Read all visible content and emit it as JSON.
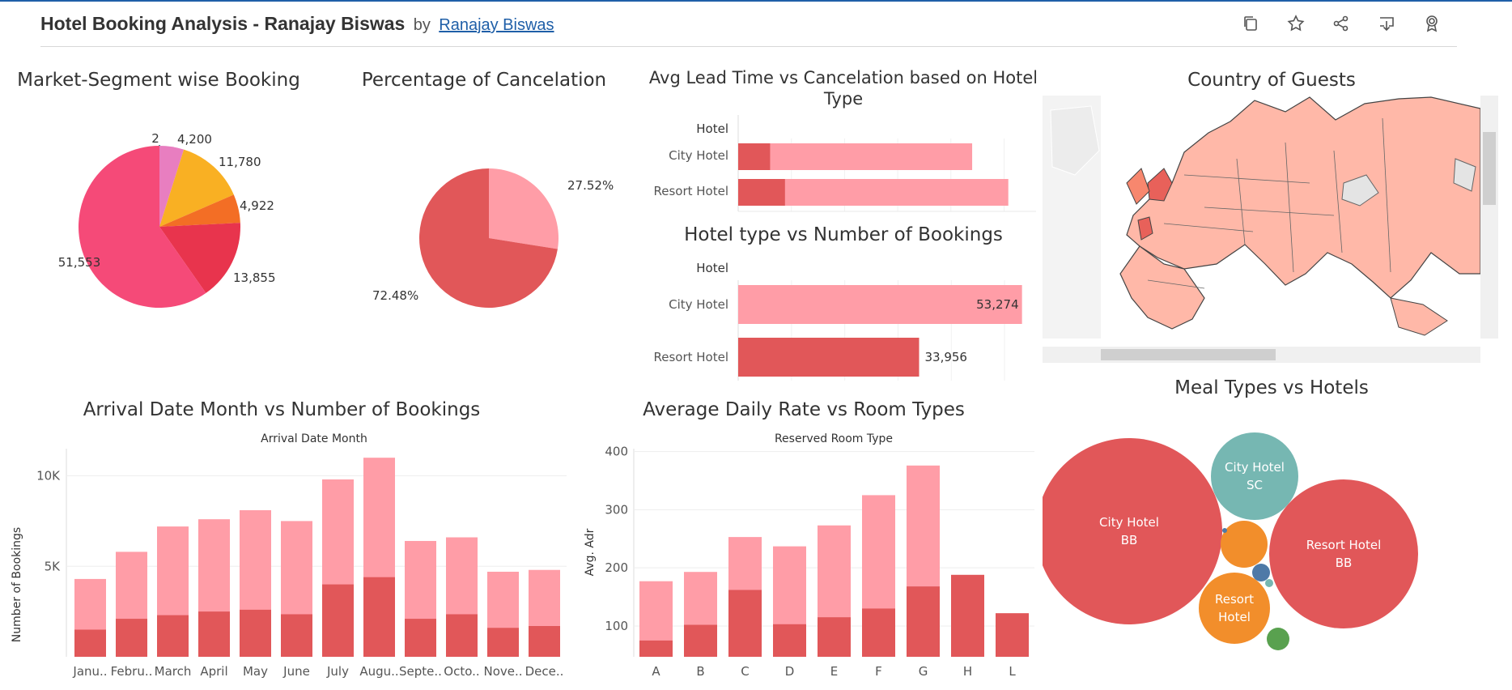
{
  "header": {
    "title": "Hotel Booking Analysis - Ranajay Biswas",
    "by": "by",
    "author": "Ranajay Biswas"
  },
  "toolbar": [
    "copy-icon",
    "star-icon",
    "share-icon",
    "download-icon",
    "badge-icon"
  ],
  "colors": {
    "dark_red": "#e15759",
    "light_red": "#ff9da7",
    "pink": "#f54a78",
    "teal": "#76b7b2",
    "orange": "#f28e2b",
    "blue": "#4e79a7",
    "green": "#59a14f",
    "map_land": "#ffb8a8",
    "map_dark": "#e8615a"
  },
  "chart_data": [
    {
      "id": "market",
      "type": "pie",
      "title": "Market-Segment wise Booking",
      "slices": [
        {
          "value": 2,
          "label": "2",
          "color": "#499894"
        },
        {
          "value": 4200,
          "label": "4,200",
          "color": "#e87ec0"
        },
        {
          "value": 11780,
          "label": "11,780",
          "color": "#f9b023"
        },
        {
          "value": 4922,
          "label": "4,922",
          "color": "#f36e25"
        },
        {
          "value": 13855,
          "label": "13,855",
          "color": "#e8344d"
        },
        {
          "value": 51553,
          "label": "51,553",
          "color": "#f54a78"
        }
      ]
    },
    {
      "id": "cancel",
      "type": "pie",
      "title": "Percentage of Cancelation",
      "slices": [
        {
          "value": 27.52,
          "label": "27.52%",
          "color": "#ff9da7"
        },
        {
          "value": 72.48,
          "label": "72.48%",
          "color": "#e15759"
        }
      ]
    },
    {
      "id": "leadtime",
      "type": "bar",
      "title": "Avg Lead Time vs Cancelation based on Hotel Type",
      "axis_header": "Hotel",
      "categories": [
        "City Hotel",
        "Resort Hotel"
      ],
      "series": [
        {
          "values": [
            15,
            22
          ]
        },
        {
          "values": [
            110,
            127
          ]
        }
      ],
      "xlim": [
        0,
        137
      ]
    },
    {
      "id": "bookings",
      "type": "bar",
      "title": "Hotel type vs Number of Bookings",
      "axis_header": "Hotel",
      "categories": [
        "City Hotel",
        "Resort Hotel"
      ],
      "values": [
        53274,
        33956
      ],
      "labels": [
        "53,274",
        "33,956"
      ],
      "xlim": [
        0,
        55000
      ]
    },
    {
      "id": "month",
      "type": "bar",
      "title": "Arrival Date Month vs Number of Bookings",
      "xlabel": "Arrival Date Month",
      "ylabel": "Number of Bookings",
      "categories": [
        "Janu..",
        "Febru..",
        "March",
        "April",
        "May",
        "June",
        "July",
        "Augu..",
        "Septe..",
        "Octo..",
        "Nove..",
        "Dece.."
      ],
      "series": [
        {
          "values": [
            1500,
            2100,
            2300,
            2500,
            2600,
            2350,
            4000,
            4400,
            2100,
            2350,
            1600,
            1700
          ]
        },
        {
          "values": [
            4300,
            5800,
            7200,
            7600,
            8100,
            7500,
            9800,
            11000,
            6400,
            6600,
            4700,
            4800
          ]
        }
      ],
      "yticks": [
        "5K",
        "10K"
      ],
      "ylim": [
        0,
        11500
      ]
    },
    {
      "id": "adr",
      "type": "bar",
      "title": "Average Daily Rate vs Room Types",
      "xlabel": "Reserved Room Type",
      "ylabel": "Avg. Adr",
      "categories": [
        "A",
        "B",
        "C",
        "D",
        "E",
        "F",
        "G",
        "H",
        "L"
      ],
      "series": [
        {
          "values": [
            75,
            102,
            162,
            103,
            115,
            130,
            168,
            188,
            122
          ]
        },
        {
          "values": [
            177,
            193,
            253,
            237,
            273,
            325,
            376,
            null,
            null
          ]
        }
      ],
      "yticks": [
        100,
        200,
        300,
        400
      ],
      "ylim": [
        47,
        405
      ]
    },
    {
      "id": "meal",
      "type": "bubble",
      "title": "Meal Types vs Hotels",
      "bubbles": [
        {
          "label_1": "City Hotel",
          "label_2": "BB",
          "color": "#e15759"
        },
        {
          "label_1": "City Hotel",
          "label_2": "SC",
          "color": "#76b7b2"
        },
        {
          "label_1": "Resort Hotel",
          "label_2": "BB",
          "color": "#e15759"
        },
        {
          "label_1": "Resort",
          "label_2": "Hotel",
          "color": "#f28e2b"
        },
        {
          "label_1": "",
          "label_2": "",
          "color": "#f28e2b"
        },
        {
          "label_1": "",
          "label_2": "",
          "color": "#4e79a7"
        },
        {
          "label_1": "",
          "label_2": "",
          "color": "#59a14f"
        },
        {
          "label_1": "",
          "label_2": "",
          "color": "#76b7b2"
        },
        {
          "label_1": "",
          "label_2": "",
          "color": "#4e79a7"
        }
      ]
    }
  ],
  "map": {
    "title": "Country of Guests"
  }
}
